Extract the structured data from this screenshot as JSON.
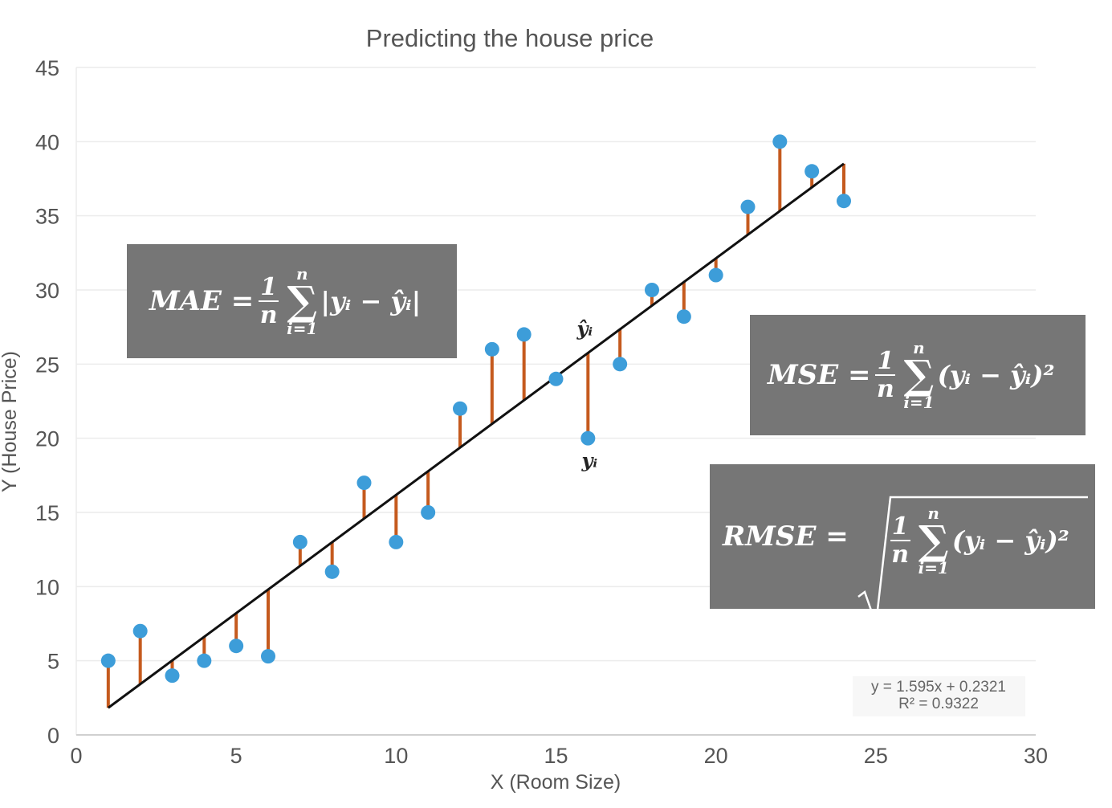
{
  "chart_data": {
    "type": "scatter",
    "title": "Predicting the house price",
    "xlabel": "X (Room Size)",
    "ylabel": "Y (House Price)",
    "xlim": [
      0,
      30
    ],
    "ylim": [
      0,
      45
    ],
    "x_ticks": [
      "0",
      "5",
      "10",
      "15",
      "20",
      "25",
      "30"
    ],
    "y_ticks": [
      "0",
      "5",
      "10",
      "15",
      "20",
      "25",
      "30",
      "35",
      "40",
      "45"
    ],
    "grid": true,
    "points": {
      "x": [
        1,
        2,
        3,
        4,
        5,
        6,
        7,
        8,
        9,
        10,
        11,
        12,
        13,
        14,
        15,
        16,
        17,
        18,
        19,
        20,
        21,
        22,
        23,
        24
      ],
      "y": [
        5,
        7,
        4,
        5,
        6,
        5.3,
        13,
        11,
        17,
        13,
        15,
        22,
        26,
        27,
        24,
        20,
        25,
        30,
        28.2,
        31,
        35.6,
        40,
        38,
        36
      ]
    },
    "trendline": {
      "slope": 1.595,
      "intercept": 0.2321,
      "x_range": [
        1,
        24
      ],
      "equation": "y = 1.595x + 0.2321",
      "r_squared": "R² = 0.9322"
    },
    "annotations": {
      "y_hat": "ŷᵢ",
      "y_obs": "yᵢ",
      "annotated_x": 16
    },
    "colors": {
      "point": "#3d9dd9",
      "residual": "#c55a1e",
      "trend": "#111111",
      "formula_bg": "#767676"
    }
  },
  "formulas": {
    "mae": {
      "lhs": "MAE =",
      "num": "1",
      "den": "n",
      "top": "n",
      "bot": "i=1",
      "expr": "|yᵢ − ŷᵢ|"
    },
    "mse": {
      "lhs": "MSE =",
      "num": "1",
      "den": "n",
      "top": "n",
      "bot": "i=1",
      "expr": "(yᵢ − ŷᵢ)²"
    },
    "rmse": {
      "lhs": "RMSE =",
      "num": "1",
      "den": "n",
      "top": "n",
      "bot": "i=1",
      "expr": "(yᵢ − ŷᵢ)²"
    }
  }
}
